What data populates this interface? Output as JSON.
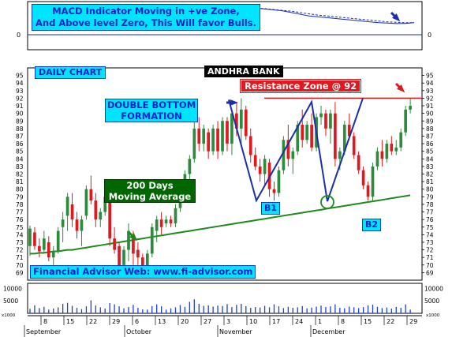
{
  "colors": {
    "up": "#2e8b3d",
    "down": "#e0191f",
    "ma": "#1e8a1e",
    "pattern": "#1a2fa8",
    "resistance": "#e0191f",
    "label_cyan": "#00e5ff",
    "label_blue_text": "#0022cc",
    "label_green_bg": "#006600",
    "volume": "#1f3fd6"
  },
  "annotations": {
    "macd_note_line1": "MACD Indicator Moving in +ve Zone,",
    "macd_note_line2": "And Above level Zero, This Will favor Bulls.",
    "daily_chart": "DAILY CHART",
    "stock_name": "ANDHRA BANK",
    "resistance": "Resistance Zone @ 92",
    "pattern_line1": "DOUBLE BOTTOM",
    "pattern_line2": "FORMATION",
    "ma_line1": "200 Days",
    "ma_line2": "Moving Average",
    "bottom1": "B1",
    "bottom2": "B2",
    "website": "Financial Advisor Web: www.fi-advisor.com"
  },
  "icons": [
    "arrow-down-right-icon",
    "arrow-right-icon"
  ],
  "chart_data": [
    {
      "type": "line",
      "panel": "macd",
      "y_zero_label": "0",
      "series": [
        {
          "style": "solid",
          "values": [
            -0.2,
            0.1,
            0.5,
            0.9,
            1.2,
            1.4,
            1.5,
            1.5,
            1.4,
            1.3,
            1.2,
            1.0,
            0.8,
            0.6,
            0.5,
            0.5,
            0.6,
            0.9,
            1.3,
            1.7,
            2.0,
            2.2,
            2.3,
            2.3,
            2.2,
            2.1,
            2.0,
            1.9,
            1.8,
            1.6,
            1.4,
            1.2,
            1.1,
            1.0,
            0.9,
            0.8,
            0.7,
            0.6,
            0.5,
            0.4,
            0.35,
            0.3,
            0.32,
            0.4
          ]
        },
        {
          "style": "dashed",
          "values": [
            -0.5,
            -0.3,
            0.0,
            0.3,
            0.6,
            0.9,
            1.1,
            1.25,
            1.3,
            1.3,
            1.25,
            1.15,
            1.0,
            0.85,
            0.75,
            0.7,
            0.7,
            0.8,
            1.0,
            1.3,
            1.6,
            1.85,
            2.0,
            2.1,
            2.15,
            2.1,
            2.05,
            1.95,
            1.85,
            1.75,
            1.6,
            1.45,
            1.3,
            1.2,
            1.1,
            1.0,
            0.9,
            0.8,
            0.7,
            0.6,
            0.5,
            0.45,
            0.4,
            0.4
          ]
        }
      ]
    },
    {
      "type": "candlestick",
      "panel": "price",
      "ylim": [
        68,
        96
      ],
      "y_ticks": [
        69,
        70,
        71,
        72,
        73,
        74,
        75,
        76,
        77,
        78,
        79,
        80,
        81,
        82,
        83,
        84,
        85,
        86,
        87,
        88,
        89,
        90,
        91,
        92,
        93,
        94,
        95
      ],
      "x_tick_labels": [
        "8",
        "15",
        "22",
        "29",
        "6",
        "13",
        "20",
        "27",
        "3",
        "10",
        "17",
        "24",
        "1",
        "8",
        "15",
        "22",
        "29"
      ],
      "month_labels": [
        "September",
        "October",
        "November",
        "December"
      ],
      "resistance_level": 92,
      "candles": [
        [
          1,
          72.5,
          75.2,
          71.2,
          74.8
        ],
        [
          2,
          74.3,
          75.0,
          72.0,
          72.5
        ],
        [
          3,
          72.5,
          73.5,
          71.0,
          71.8
        ],
        [
          4,
          72.0,
          74.5,
          71.5,
          73.5
        ],
        [
          5,
          73.0,
          73.8,
          70.5,
          71.0
        ],
        [
          6,
          71.0,
          72.5,
          70.0,
          71.8
        ],
        [
          7,
          71.8,
          75.0,
          71.5,
          74.5
        ],
        [
          8,
          75.0,
          77.0,
          73.0,
          76.0
        ],
        [
          9,
          76.5,
          79.5,
          74.5,
          79.0
        ],
        [
          10,
          78.0,
          79.5,
          75.0,
          76.0
        ],
        [
          11,
          76.0,
          77.0,
          73.5,
          74.5
        ],
        [
          12,
          74.5,
          76.5,
          72.5,
          76.0
        ],
        [
          13,
          76.5,
          80.5,
          76.0,
          80.0
        ],
        [
          14,
          80.0,
          81.8,
          78.0,
          78.5
        ],
        [
          15,
          78.5,
          79.5,
          75.0,
          76.0
        ],
        [
          16,
          76.0,
          77.5,
          75.0,
          77.0
        ],
        [
          17,
          77.0,
          79.5,
          76.5,
          79.0
        ],
        [
          18,
          78.5,
          79.0,
          72.5,
          73.5
        ],
        [
          19,
          73.5,
          75.0,
          71.5,
          72.0
        ],
        [
          20,
          72.5,
          73.0,
          68.5,
          69.0
        ],
        [
          21,
          70.0,
          72.5,
          69.0,
          72.0
        ],
        [
          22,
          72.0,
          75.5,
          70.5,
          74.5
        ],
        [
          23,
          74.0,
          74.5,
          70.0,
          71.5
        ],
        [
          24,
          72.0,
          73.0,
          70.0,
          71.0
        ],
        [
          25,
          71.0,
          71.5,
          68.5,
          68.8
        ],
        [
          26,
          68.8,
          72.0,
          68.5,
          71.5
        ],
        [
          27,
          71.5,
          75.5,
          71.0,
          75.0
        ],
        [
          28,
          74.5,
          76.5,
          73.0,
          76.0
        ],
        [
          29,
          76.0,
          77.0,
          74.0,
          75.0
        ],
        [
          30,
          75.5,
          76.5,
          75.0,
          76.0
        ],
        [
          31,
          76.0,
          76.5,
          75.0,
          75.5
        ],
        [
          32,
          75.5,
          78.0,
          75.0,
          77.5
        ],
        [
          33,
          77.5,
          80.5,
          77.0,
          80.0
        ],
        [
          34,
          80.0,
          82.5,
          78.5,
          82.0
        ],
        [
          35,
          82.0,
          84.5,
          81.0,
          84.0
        ],
        [
          36,
          84.0,
          89.0,
          83.5,
          88.0
        ],
        [
          37,
          88.0,
          89.5,
          85.0,
          86.0
        ],
        [
          38,
          86.0,
          88.5,
          85.0,
          88.0
        ],
        [
          39,
          87.5,
          88.0,
          84.0,
          85.0
        ],
        [
          40,
          85.0,
          88.5,
          84.5,
          88.0
        ],
        [
          41,
          88.0,
          89.0,
          84.0,
          85.0
        ],
        [
          42,
          85.0,
          89.5,
          84.5,
          89.0
        ],
        [
          43,
          89.0,
          89.5,
          85.0,
          86.0
        ],
        [
          44,
          86.0,
          90.5,
          84.5,
          90.0
        ],
        [
          45,
          90.0,
          91.5,
          87.0,
          88.0
        ],
        [
          46,
          88.0,
          92.0,
          86.0,
          90.5
        ],
        [
          47,
          90.5,
          91.0,
          86.5,
          87.0
        ],
        [
          48,
          87.0,
          88.0,
          83.5,
          84.5
        ],
        [
          49,
          84.5,
          85.5,
          82.5,
          83.0
        ],
        [
          50,
          83.0,
          84.0,
          81.0,
          82.0
        ],
        [
          51,
          82.0,
          84.5,
          80.5,
          84.0
        ],
        [
          52,
          83.5,
          84.0,
          79.0,
          80.0
        ],
        [
          53,
          80.0,
          81.0,
          78.5,
          79.5
        ],
        [
          54,
          79.5,
          83.0,
          79.0,
          82.5
        ],
        [
          55,
          82.5,
          87.0,
          82.0,
          86.5
        ],
        [
          56,
          86.5,
          88.5,
          83.0,
          84.0
        ],
        [
          57,
          84.0,
          85.5,
          82.0,
          85.0
        ],
        [
          58,
          85.0,
          89.0,
          84.5,
          88.5
        ],
        [
          59,
          88.5,
          90.5,
          85.5,
          86.5
        ],
        [
          60,
          86.5,
          89.0,
          86.0,
          88.5
        ],
        [
          61,
          88.5,
          90.0,
          85.0,
          85.5
        ],
        [
          62,
          85.5,
          90.0,
          85.0,
          89.5
        ],
        [
          63,
          89.5,
          91.0,
          88.5,
          90.0
        ],
        [
          64,
          90.0,
          90.5,
          87.0,
          88.0
        ],
        [
          65,
          88.0,
          90.5,
          86.0,
          90.0
        ],
        [
          66,
          90.0,
          91.5,
          83.0,
          84.0
        ],
        [
          67,
          84.0,
          85.5,
          82.5,
          85.0
        ],
        [
          68,
          85.0,
          89.0,
          84.5,
          88.5
        ],
        [
          69,
          88.5,
          90.0,
          86.5,
          87.0
        ],
        [
          70,
          87.0,
          87.5,
          84.0,
          84.5
        ],
        [
          71,
          84.5,
          85.0,
          82.0,
          82.5
        ],
        [
          72,
          82.5,
          83.0,
          80.0,
          80.5
        ],
        [
          73,
          80.5,
          81.0,
          78.5,
          79.0
        ],
        [
          74,
          79.0,
          83.5,
          78.5,
          83.0
        ],
        [
          75,
          83.0,
          85.5,
          82.5,
          85.0
        ],
        [
          76,
          85.0,
          86.5,
          83.0,
          84.0
        ],
        [
          77,
          84.0,
          86.5,
          83.5,
          86.0
        ],
        [
          78,
          86.0,
          87.0,
          84.5,
          85.0
        ],
        [
          79,
          85.0,
          86.5,
          84.5,
          85.5
        ],
        [
          80,
          85.5,
          88.0,
          85.0,
          87.5
        ],
        [
          81,
          87.5,
          91.0,
          87.0,
          90.5
        ],
        [
          82,
          90.5,
          92.0,
          90.0,
          91.0
        ]
      ],
      "moving_average": [
        71.5,
        71.5,
        71.6,
        71.6,
        71.7,
        71.8,
        71.8,
        71.9,
        72.0,
        72.0,
        72.1,
        72.2,
        72.3,
        72.4,
        72.5,
        72.6,
        72.7,
        72.8,
        72.9,
        73.0,
        73.1,
        73.2,
        73.3,
        73.4,
        73.5,
        73.6,
        73.7,
        73.8,
        73.9,
        74.0,
        74.1,
        74.2,
        74.3,
        74.4,
        74.5,
        74.6,
        74.7,
        74.8,
        74.9,
        75.0,
        75.1,
        75.2,
        75.3,
        75.4,
        75.5,
        75.6,
        75.7,
        75.8,
        75.9,
        76.0,
        76.1,
        76.2,
        76.3,
        76.4,
        76.5,
        76.6,
        76.7,
        76.8,
        76.9,
        77.0,
        77.1,
        77.2,
        77.3,
        77.4,
        77.5,
        77.6,
        77.7,
        77.8,
        77.9,
        78.0,
        78.1,
        78.2,
        78.3,
        78.4,
        78.5,
        78.6,
        78.7,
        78.8,
        78.9,
        79.0,
        79.1,
        79.2
      ],
      "pattern_points": [
        [
          51,
          91.8
        ],
        [
          58,
          78.5
        ],
        [
          72,
          91.5
        ],
        [
          76,
          78.4
        ],
        [
          85,
          92.0
        ]
      ]
    },
    {
      "type": "bar",
      "panel": "volume",
      "y_ticks": [
        5000,
        10000
      ],
      "unit_label": "x1000",
      "values": [
        1800,
        3200,
        2100,
        2600,
        1500,
        1900,
        2400,
        3800,
        4200,
        3000,
        2200,
        1700,
        2800,
        5200,
        3100,
        2400,
        1900,
        4100,
        3600,
        2800,
        2000,
        2500,
        3400,
        2200,
        1600,
        1500,
        2900,
        3600,
        2800,
        1500,
        2000,
        2400,
        3300,
        2600,
        4600,
        5600,
        3800,
        3000,
        3200,
        2700,
        3100,
        2900,
        3700,
        2500,
        3400,
        3800,
        2900,
        2200,
        2500,
        2300,
        3000,
        2400,
        3600,
        2800,
        2100,
        2600,
        2200,
        2400,
        2900,
        2000,
        2300,
        2700,
        3100,
        2500,
        2800,
        3600,
        2200,
        2000,
        2700,
        2400,
        2100,
        2500,
        3200,
        3500,
        2600,
        2100,
        2300,
        1900,
        2600,
        2200,
        3600,
        1500
      ]
    }
  ]
}
